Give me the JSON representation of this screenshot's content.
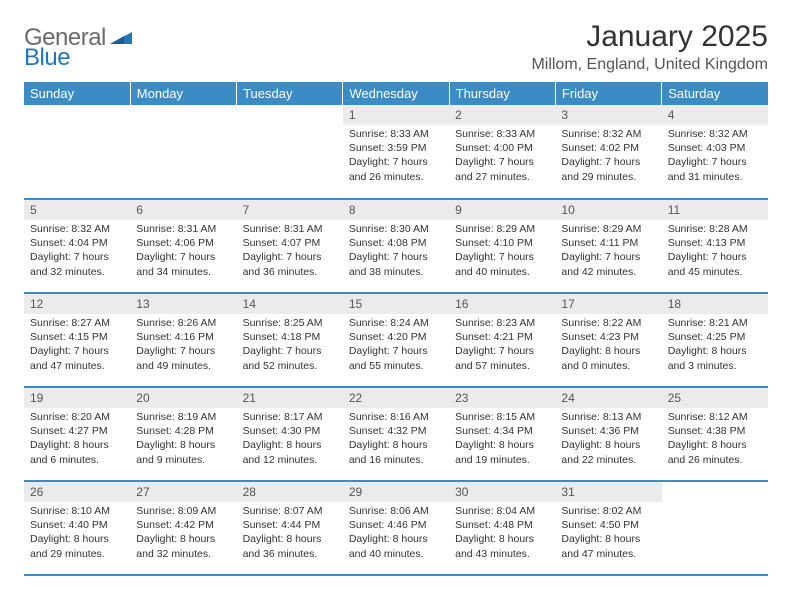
{
  "logo": {
    "text_general": "General",
    "text_blue": "Blue",
    "icon_color": "#2176b8"
  },
  "header": {
    "title": "January 2025",
    "location": "Millom, England, United Kingdom"
  },
  "theme": {
    "header_bg": "#3b8bc4",
    "header_fg": "#ffffff",
    "daynum_bg": "#ebebeb",
    "border_color": "#3b8bc4",
    "text_color": "#333333"
  },
  "weekdays": [
    "Sunday",
    "Monday",
    "Tuesday",
    "Wednesday",
    "Thursday",
    "Friday",
    "Saturday"
  ],
  "weeks": [
    [
      {
        "empty": true
      },
      {
        "empty": true
      },
      {
        "empty": true
      },
      {
        "day": "1",
        "sunrise": "Sunrise: 8:33 AM",
        "sunset": "Sunset: 3:59 PM",
        "daylight1": "Daylight: 7 hours",
        "daylight2": "and 26 minutes."
      },
      {
        "day": "2",
        "sunrise": "Sunrise: 8:33 AM",
        "sunset": "Sunset: 4:00 PM",
        "daylight1": "Daylight: 7 hours",
        "daylight2": "and 27 minutes."
      },
      {
        "day": "3",
        "sunrise": "Sunrise: 8:32 AM",
        "sunset": "Sunset: 4:02 PM",
        "daylight1": "Daylight: 7 hours",
        "daylight2": "and 29 minutes."
      },
      {
        "day": "4",
        "sunrise": "Sunrise: 8:32 AM",
        "sunset": "Sunset: 4:03 PM",
        "daylight1": "Daylight: 7 hours",
        "daylight2": "and 31 minutes."
      }
    ],
    [
      {
        "day": "5",
        "sunrise": "Sunrise: 8:32 AM",
        "sunset": "Sunset: 4:04 PM",
        "daylight1": "Daylight: 7 hours",
        "daylight2": "and 32 minutes."
      },
      {
        "day": "6",
        "sunrise": "Sunrise: 8:31 AM",
        "sunset": "Sunset: 4:06 PM",
        "daylight1": "Daylight: 7 hours",
        "daylight2": "and 34 minutes."
      },
      {
        "day": "7",
        "sunrise": "Sunrise: 8:31 AM",
        "sunset": "Sunset: 4:07 PM",
        "daylight1": "Daylight: 7 hours",
        "daylight2": "and 36 minutes."
      },
      {
        "day": "8",
        "sunrise": "Sunrise: 8:30 AM",
        "sunset": "Sunset: 4:08 PM",
        "daylight1": "Daylight: 7 hours",
        "daylight2": "and 38 minutes."
      },
      {
        "day": "9",
        "sunrise": "Sunrise: 8:29 AM",
        "sunset": "Sunset: 4:10 PM",
        "daylight1": "Daylight: 7 hours",
        "daylight2": "and 40 minutes."
      },
      {
        "day": "10",
        "sunrise": "Sunrise: 8:29 AM",
        "sunset": "Sunset: 4:11 PM",
        "daylight1": "Daylight: 7 hours",
        "daylight2": "and 42 minutes."
      },
      {
        "day": "11",
        "sunrise": "Sunrise: 8:28 AM",
        "sunset": "Sunset: 4:13 PM",
        "daylight1": "Daylight: 7 hours",
        "daylight2": "and 45 minutes."
      }
    ],
    [
      {
        "day": "12",
        "sunrise": "Sunrise: 8:27 AM",
        "sunset": "Sunset: 4:15 PM",
        "daylight1": "Daylight: 7 hours",
        "daylight2": "and 47 minutes."
      },
      {
        "day": "13",
        "sunrise": "Sunrise: 8:26 AM",
        "sunset": "Sunset: 4:16 PM",
        "daylight1": "Daylight: 7 hours",
        "daylight2": "and 49 minutes."
      },
      {
        "day": "14",
        "sunrise": "Sunrise: 8:25 AM",
        "sunset": "Sunset: 4:18 PM",
        "daylight1": "Daylight: 7 hours",
        "daylight2": "and 52 minutes."
      },
      {
        "day": "15",
        "sunrise": "Sunrise: 8:24 AM",
        "sunset": "Sunset: 4:20 PM",
        "daylight1": "Daylight: 7 hours",
        "daylight2": "and 55 minutes."
      },
      {
        "day": "16",
        "sunrise": "Sunrise: 8:23 AM",
        "sunset": "Sunset: 4:21 PM",
        "daylight1": "Daylight: 7 hours",
        "daylight2": "and 57 minutes."
      },
      {
        "day": "17",
        "sunrise": "Sunrise: 8:22 AM",
        "sunset": "Sunset: 4:23 PM",
        "daylight1": "Daylight: 8 hours",
        "daylight2": "and 0 minutes."
      },
      {
        "day": "18",
        "sunrise": "Sunrise: 8:21 AM",
        "sunset": "Sunset: 4:25 PM",
        "daylight1": "Daylight: 8 hours",
        "daylight2": "and 3 minutes."
      }
    ],
    [
      {
        "day": "19",
        "sunrise": "Sunrise: 8:20 AM",
        "sunset": "Sunset: 4:27 PM",
        "daylight1": "Daylight: 8 hours",
        "daylight2": "and 6 minutes."
      },
      {
        "day": "20",
        "sunrise": "Sunrise: 8:19 AM",
        "sunset": "Sunset: 4:28 PM",
        "daylight1": "Daylight: 8 hours",
        "daylight2": "and 9 minutes."
      },
      {
        "day": "21",
        "sunrise": "Sunrise: 8:17 AM",
        "sunset": "Sunset: 4:30 PM",
        "daylight1": "Daylight: 8 hours",
        "daylight2": "and 12 minutes."
      },
      {
        "day": "22",
        "sunrise": "Sunrise: 8:16 AM",
        "sunset": "Sunset: 4:32 PM",
        "daylight1": "Daylight: 8 hours",
        "daylight2": "and 16 minutes."
      },
      {
        "day": "23",
        "sunrise": "Sunrise: 8:15 AM",
        "sunset": "Sunset: 4:34 PM",
        "daylight1": "Daylight: 8 hours",
        "daylight2": "and 19 minutes."
      },
      {
        "day": "24",
        "sunrise": "Sunrise: 8:13 AM",
        "sunset": "Sunset: 4:36 PM",
        "daylight1": "Daylight: 8 hours",
        "daylight2": "and 22 minutes."
      },
      {
        "day": "25",
        "sunrise": "Sunrise: 8:12 AM",
        "sunset": "Sunset: 4:38 PM",
        "daylight1": "Daylight: 8 hours",
        "daylight2": "and 26 minutes."
      }
    ],
    [
      {
        "day": "26",
        "sunrise": "Sunrise: 8:10 AM",
        "sunset": "Sunset: 4:40 PM",
        "daylight1": "Daylight: 8 hours",
        "daylight2": "and 29 minutes."
      },
      {
        "day": "27",
        "sunrise": "Sunrise: 8:09 AM",
        "sunset": "Sunset: 4:42 PM",
        "daylight1": "Daylight: 8 hours",
        "daylight2": "and 32 minutes."
      },
      {
        "day": "28",
        "sunrise": "Sunrise: 8:07 AM",
        "sunset": "Sunset: 4:44 PM",
        "daylight1": "Daylight: 8 hours",
        "daylight2": "and 36 minutes."
      },
      {
        "day": "29",
        "sunrise": "Sunrise: 8:06 AM",
        "sunset": "Sunset: 4:46 PM",
        "daylight1": "Daylight: 8 hours",
        "daylight2": "and 40 minutes."
      },
      {
        "day": "30",
        "sunrise": "Sunrise: 8:04 AM",
        "sunset": "Sunset: 4:48 PM",
        "daylight1": "Daylight: 8 hours",
        "daylight2": "and 43 minutes."
      },
      {
        "day": "31",
        "sunrise": "Sunrise: 8:02 AM",
        "sunset": "Sunset: 4:50 PM",
        "daylight1": "Daylight: 8 hours",
        "daylight2": "and 47 minutes."
      },
      {
        "empty": true
      }
    ]
  ]
}
